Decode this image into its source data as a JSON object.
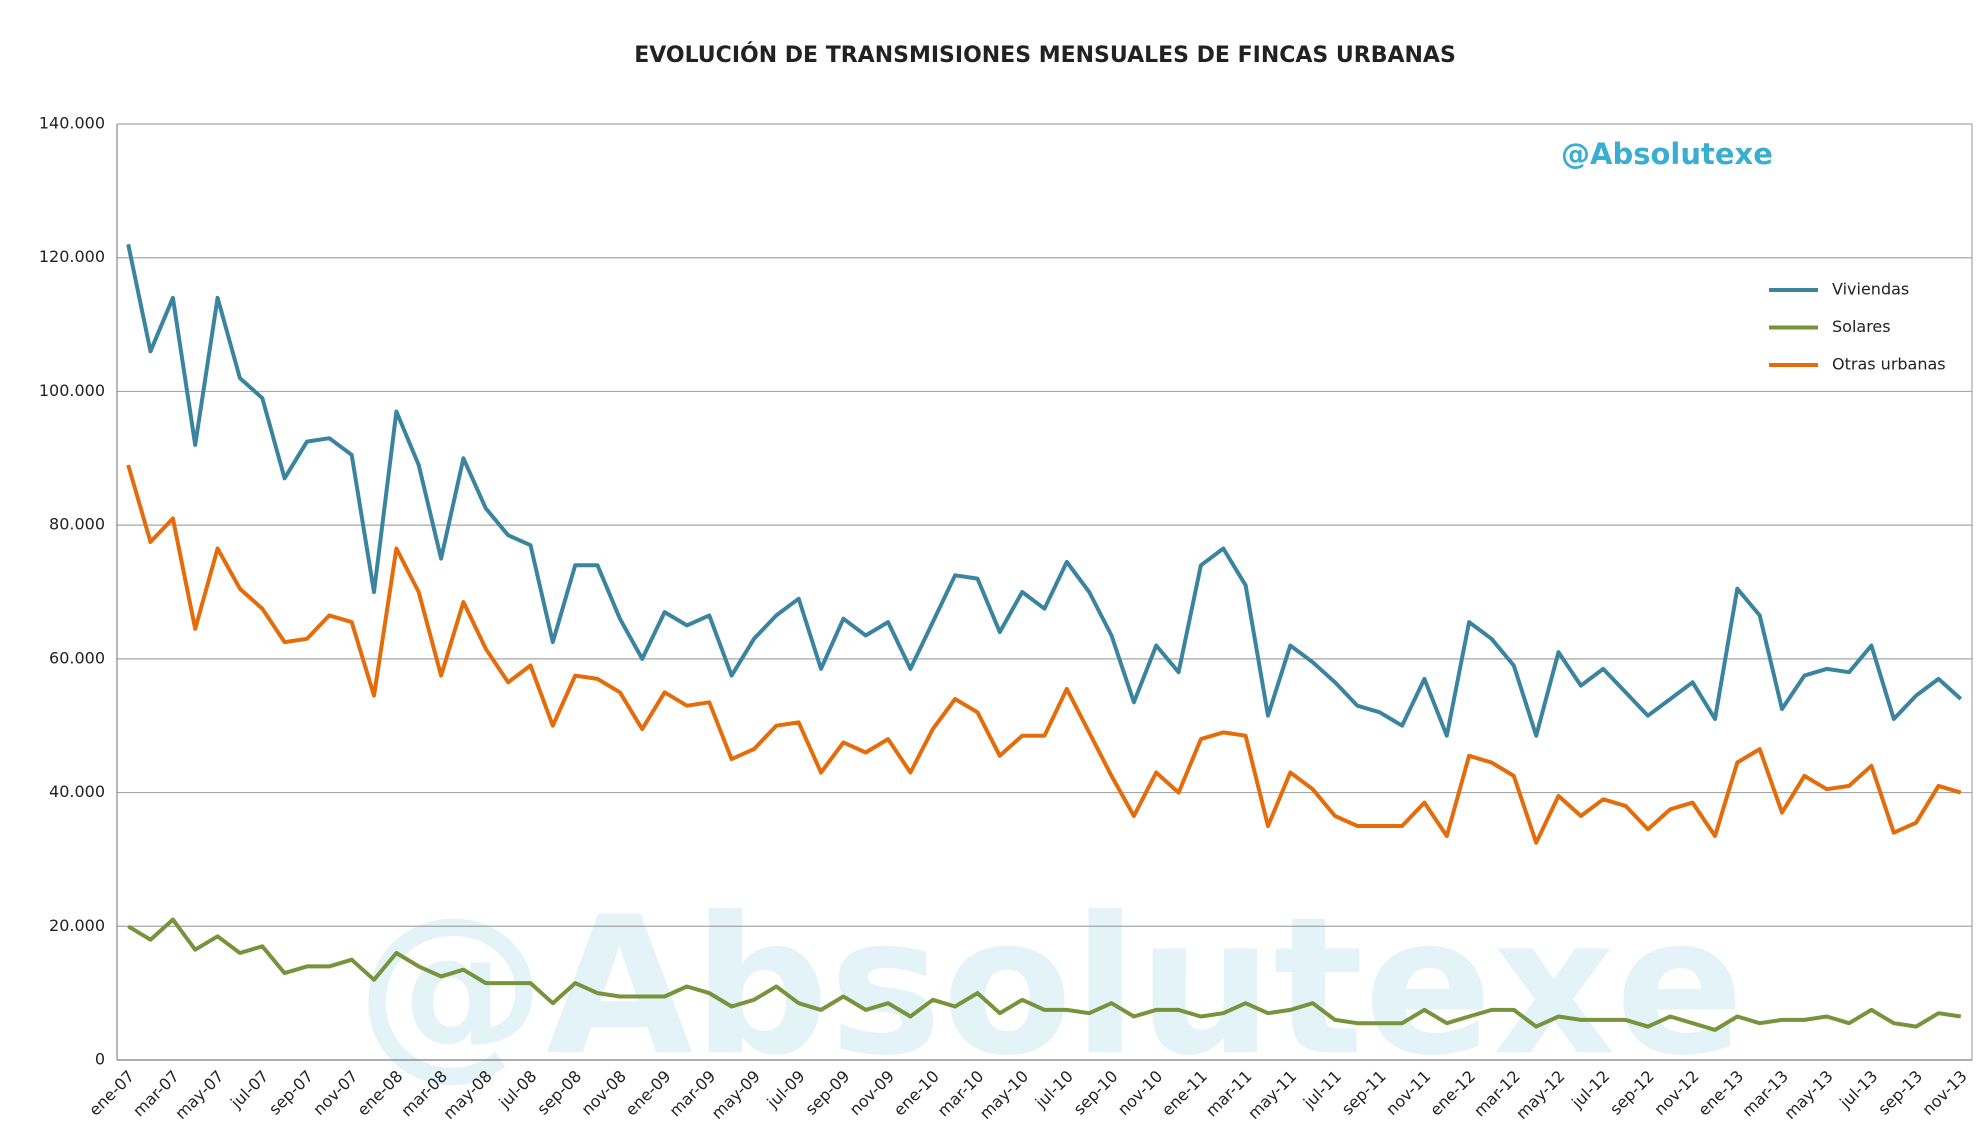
{
  "chart_data": {
    "type": "line",
    "title": "EVOLUCIÓN DE TRANSMISIONES MENSUALES DE FINCAS URBANAS",
    "watermark": "@Absolutexe",
    "categories": [
      "ene-07",
      null,
      "mar-07",
      null,
      "may-07",
      null,
      "jul-07",
      null,
      "sep-07",
      null,
      "nov-07",
      null,
      "ene-08",
      null,
      "mar-08",
      null,
      "may-08",
      null,
      "jul-08",
      null,
      "sep-08",
      null,
      "nov-08",
      null,
      "ene-09",
      null,
      "mar-09",
      null,
      "may-09",
      null,
      "jul-09",
      null,
      "sep-09",
      null,
      "nov-09",
      null,
      "ene-10",
      null,
      "mar-10",
      null,
      "may-10",
      null,
      "jul-10",
      null,
      "sep-10",
      null,
      "nov-10",
      null,
      "ene-11",
      null,
      "mar-11",
      null,
      "may-11",
      null,
      "jul-11",
      null,
      "sep-11",
      null,
      "nov-11",
      null,
      "ene-12",
      null,
      "mar-12",
      null,
      "may-12",
      null,
      "jul-12",
      null,
      "sep-12",
      null,
      "nov-12",
      null,
      "ene-13",
      null,
      "mar-13",
      null,
      "may-13",
      null,
      "jul-13",
      null,
      "sep-13",
      null,
      "nov-13"
    ],
    "series": [
      {
        "name": "Viviendas",
        "color": "#3b84a0",
        "values": [
          122000,
          106000,
          114000,
          92000,
          114000,
          102000,
          99000,
          87000,
          92500,
          93000,
          90500,
          70000,
          97000,
          89000,
          75000,
          90000,
          82500,
          78500,
          77000,
          62500,
          74000,
          74000,
          66000,
          60000,
          67000,
          65000,
          66500,
          57500,
          63000,
          66500,
          69000,
          58500,
          66000,
          63500,
          65500,
          58500,
          65500,
          72500,
          72000,
          64000,
          70000,
          67500,
          74500,
          70000,
          63500,
          53500,
          62000,
          58000,
          74000,
          76500,
          71000,
          51500,
          62000,
          59500,
          56500,
          53000,
          52000,
          50000,
          57000,
          48500,
          65500,
          63000,
          59000,
          48500,
          61000,
          56000,
          58500,
          55000,
          51500,
          54000,
          56500,
          51000,
          70500,
          66500,
          52500,
          57500,
          58500,
          58000,
          62000,
          51000,
          54500,
          57000,
          54000
        ]
      },
      {
        "name": "Solares",
        "color": "#77933c",
        "values": [
          20000,
          18000,
          21000,
          16500,
          18500,
          16000,
          17000,
          13000,
          14000,
          14000,
          15000,
          12000,
          16000,
          14000,
          12500,
          13500,
          11500,
          11500,
          11500,
          8500,
          11500,
          10000,
          9500,
          9500,
          9500,
          11000,
          10000,
          8000,
          9000,
          11000,
          8500,
          7500,
          9500,
          7500,
          8500,
          6500,
          9000,
          8000,
          10000,
          7000,
          9000,
          7500,
          7500,
          7000,
          8500,
          6500,
          7500,
          7500,
          6500,
          7000,
          8500,
          7000,
          7500,
          8500,
          6000,
          5500,
          5500,
          5500,
          7500,
          5500,
          6500,
          7500,
          7500,
          5000,
          6500,
          6000,
          6000,
          6000,
          5000,
          6500,
          5500,
          4500,
          6500,
          5500,
          6000,
          6000,
          6500,
          5500,
          7500,
          5500,
          5000,
          7000,
          6500
        ]
      },
      {
        "name": "Otras urbanas",
        "color": "#e46c0a",
        "values": [
          89000,
          77500,
          81000,
          64500,
          76500,
          70500,
          67500,
          62500,
          63000,
          66500,
          65500,
          54500,
          76500,
          70000,
          57500,
          68500,
          61500,
          56500,
          59000,
          50000,
          57500,
          57000,
          55000,
          49500,
          55000,
          53000,
          53500,
          45000,
          46500,
          50000,
          50500,
          43000,
          47500,
          46000,
          48000,
          43000,
          49500,
          54000,
          52000,
          45500,
          48500,
          48500,
          55500,
          49000,
          42500,
          36500,
          43000,
          40000,
          48000,
          49000,
          48500,
          35000,
          43000,
          40500,
          36500,
          35000,
          35000,
          35000,
          38500,
          33500,
          45500,
          44500,
          42500,
          32500,
          39500,
          36500,
          39000,
          38000,
          34500,
          37500,
          38500,
          33500,
          44500,
          46500,
          37000,
          42500,
          40500,
          41000,
          44000,
          34000,
          35500,
          41000,
          40000
        ]
      }
    ],
    "ylim": [
      0,
      140000
    ],
    "yticks": [
      0,
      {
        "value": 20000,
        "label": "20.000"
      },
      {
        "value": 40000,
        "label": "40.000"
      },
      {
        "value": 60000,
        "label": "60.000"
      },
      {
        "value": 80000,
        "label": "80.000"
      },
      {
        "value": 100000,
        "label": "100.000"
      },
      {
        "value": 120000,
        "label": "120.000"
      },
      {
        "value": 140000,
        "label": "140.000"
      }
    ],
    "grid": true,
    "legend": "upper right"
  }
}
